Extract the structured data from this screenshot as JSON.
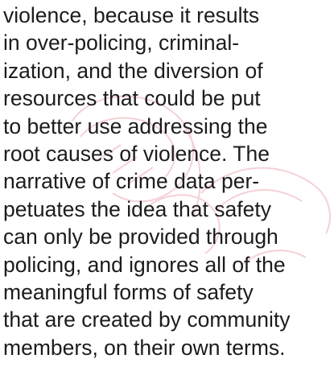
{
  "paragraph": {
    "lines": [
      "violence, because it results",
      "in over-policing, criminal-",
      "ization, and the diversion of",
      "resources that could be put",
      "to better use addressing the",
      "root causes of violence. The",
      "narrative of crime data per-",
      "petuates the idea that safety",
      "can only be provided through",
      "policing, and ignores all of the",
      "meaningful forms of safety",
      "that are created by community",
      "members, on their own terms."
    ]
  }
}
